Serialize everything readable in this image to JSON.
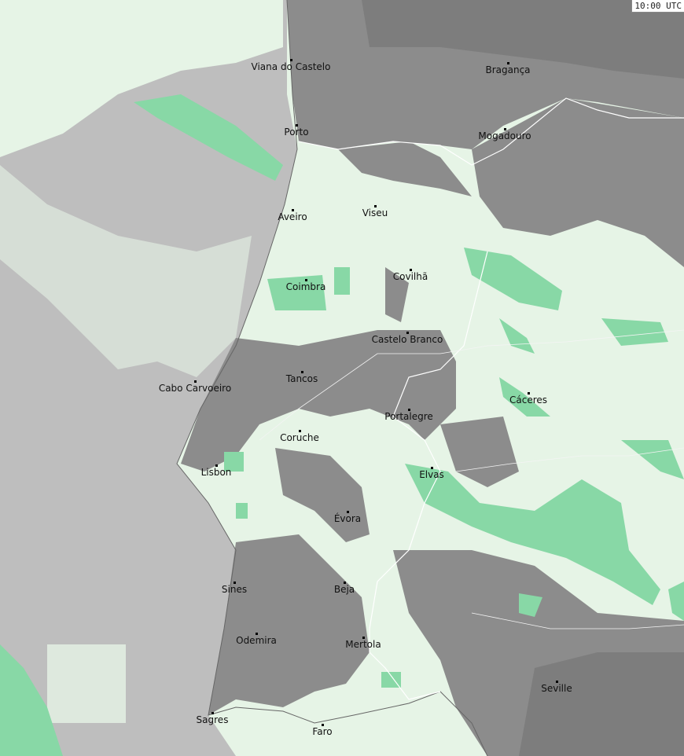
{
  "timestamp": "10:00 UTC",
  "colors": {
    "land_clear": "#e6f4e6",
    "sea": "#bebebe",
    "cloud_dark": "#8c8c8c",
    "cloud_darker": "#7d7d7d",
    "precip_light": "#88d8a6",
    "border": "#ffffff",
    "coast": "#666666"
  },
  "cities": [
    {
      "name": "Viana do Castelo"
    },
    {
      "name": "Bragança"
    },
    {
      "name": "Porto"
    },
    {
      "name": "Mogadouro"
    },
    {
      "name": "Aveiro"
    },
    {
      "name": "Viseu"
    },
    {
      "name": "Coimbra"
    },
    {
      "name": "Covilhã"
    },
    {
      "name": "Castelo Branco"
    },
    {
      "name": "Tancos"
    },
    {
      "name": "Cabo Carvoeiro"
    },
    {
      "name": "Portalegre"
    },
    {
      "name": "Cáceres"
    },
    {
      "name": "Coruche"
    },
    {
      "name": "Lisbon"
    },
    {
      "name": "Elvas"
    },
    {
      "name": "Évora"
    },
    {
      "name": "Sines"
    },
    {
      "name": "Beja"
    },
    {
      "name": "Odemira"
    },
    {
      "name": "Mertola"
    },
    {
      "name": "Seville"
    },
    {
      "name": "Sagres"
    },
    {
      "name": "Faro"
    }
  ]
}
